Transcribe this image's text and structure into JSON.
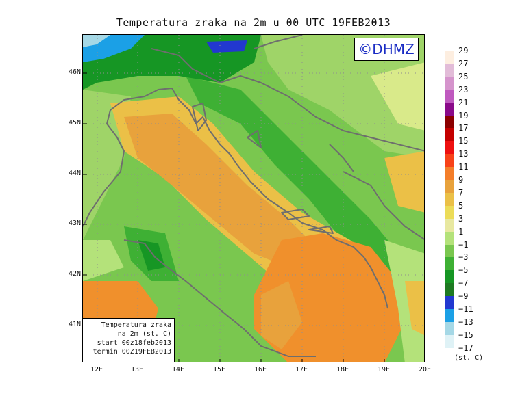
{
  "title": "Temperatura zraka na 2m u 00 UTC 19FEB2013",
  "logo": "©DHMZ",
  "info_box": {
    "line1": "Temperatura zraka",
    "line2": "na 2m (st. C)",
    "line3": "start 00z18feb2013",
    "line4": "termin 00Z19FEB2013"
  },
  "latitude_labels": [
    "46N",
    "45N",
    "44N",
    "43N",
    "42N",
    "41N"
  ],
  "longitude_labels": [
    "12E",
    "13E",
    "14E",
    "15E",
    "16E",
    "17E",
    "18E",
    "19E",
    "20E"
  ],
  "legend": {
    "unit": "(st. C)",
    "labels": [
      "29",
      "27",
      "25",
      "23",
      "21",
      "19",
      "17",
      "15",
      "13",
      "11",
      "9",
      "7",
      "5",
      "3",
      "1",
      "−1",
      "−3",
      "−5",
      "−7",
      "−9",
      "−11",
      "−13",
      "−15",
      "−17"
    ],
    "colors": [
      "#fdeee0",
      "#e2bcd8",
      "#d594cc",
      "#bf59bf",
      "#8a0a8a",
      "#8c0000",
      "#c40000",
      "#ee1010",
      "#f84218",
      "#f47e2a",
      "#e8a23c",
      "#ebc047",
      "#ecdc58",
      "#e8e8a0",
      "#b4e27a",
      "#7ac74f",
      "#3eb034",
      "#169624",
      "#1e7a22",
      "#2238d0",
      "#1ba0e6",
      "#a5d8e6",
      "#dff2f6"
    ]
  },
  "colors": {
    "sea_warm": "#f0902c",
    "sea_mid": "#e8a23c",
    "coast_yellow": "#ebc047",
    "land_green": "#7ac74f",
    "land_light": "#b4e27a",
    "land_dark": "#3eb034",
    "alps_dark": "#169624",
    "alps_blue": "#2238d0",
    "coastline": "#6e6e6e"
  }
}
